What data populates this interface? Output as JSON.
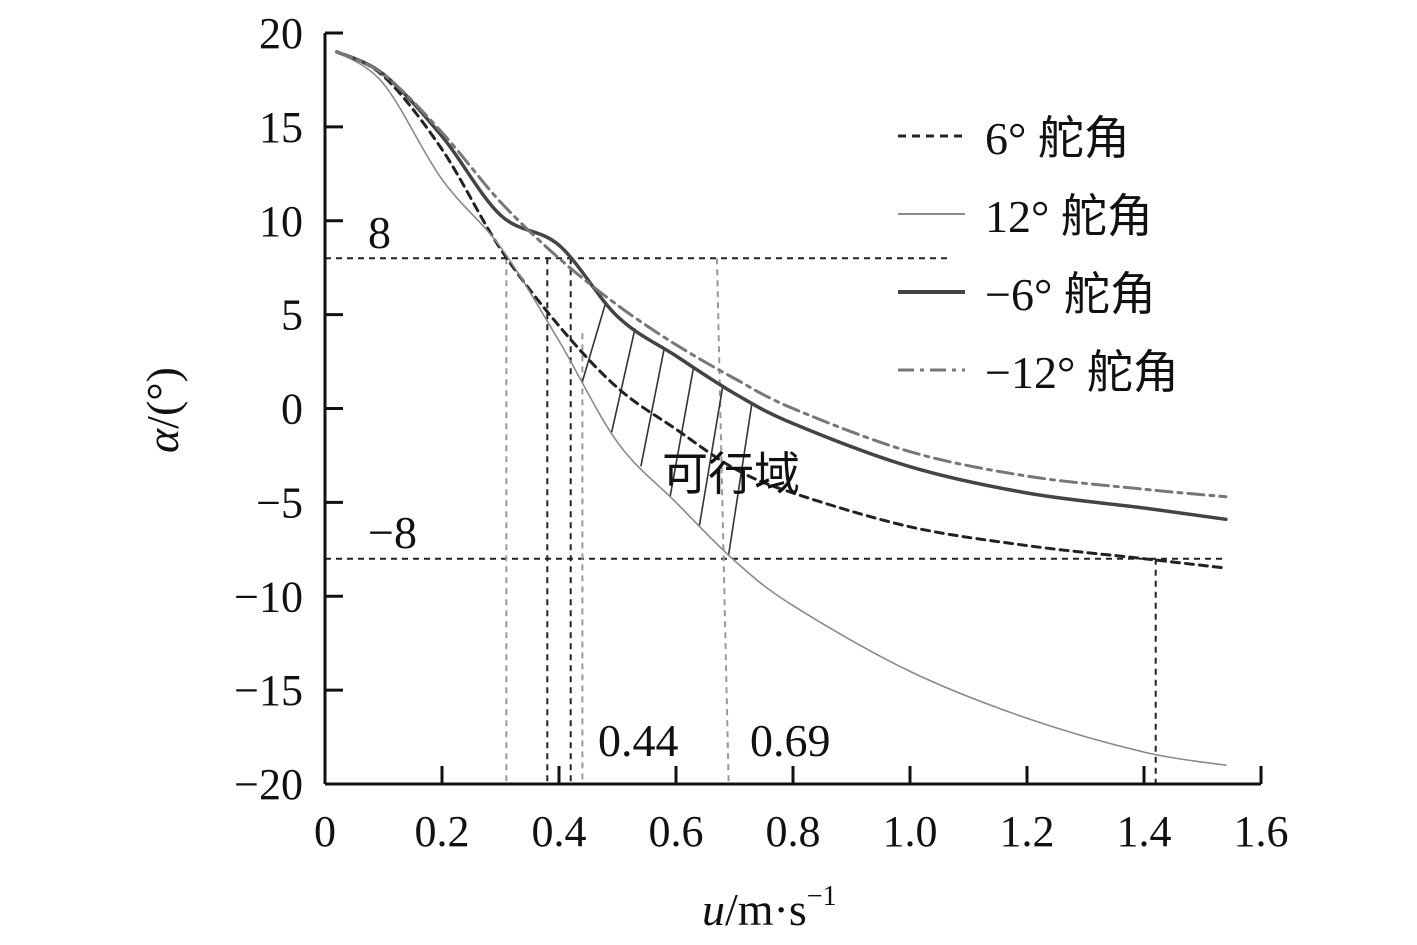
{
  "chart_data": {
    "type": "line",
    "title": "",
    "xlabel": "u/m·s⁻¹",
    "xlabel_parts": {
      "var": "u",
      "unit": "/m·s",
      "sup": "−1"
    },
    "ylabel": "α/(°)",
    "ylabel_parts": {
      "var": "α",
      "unit": "/(°)"
    },
    "xlim": [
      0,
      1.6
    ],
    "ylim": [
      -20,
      20
    ],
    "xticks": [
      0,
      0.2,
      0.4,
      0.6,
      0.8,
      1.0,
      1.2,
      1.4,
      1.6
    ],
    "xtick_labels": [
      "0",
      "0.2",
      "0.4",
      "0.6",
      "0.8",
      "1.0",
      "1.2",
      "1.4",
      "1.6"
    ],
    "yticks": [
      20,
      15,
      10,
      5,
      0,
      -5,
      -10,
      -15,
      -20
    ],
    "ytick_labels": [
      "20",
      "15",
      "10",
      "5",
      "0",
      "−5",
      "−10",
      "−15",
      "−20"
    ],
    "grid": false,
    "legend_position": "top-right",
    "series": [
      {
        "name": "6° 舵角",
        "style": "dashed",
        "color": "#222222",
        "x": [
          0.02,
          0.1,
          0.2,
          0.3,
          0.4,
          0.5,
          0.6,
          0.7,
          0.8,
          1.0,
          1.2,
          1.4,
          1.54
        ],
        "y": [
          19,
          17.7,
          13.8,
          8.5,
          4.4,
          1.1,
          -1.1,
          -3.2,
          -4.5,
          -6.3,
          -7.3,
          -8.0,
          -8.5
        ]
      },
      {
        "name": "12° 舵角",
        "style": "solid-thin",
        "color": "#8a8a8a",
        "x": [
          0.02,
          0.1,
          0.2,
          0.3,
          0.4,
          0.5,
          0.6,
          0.7,
          0.8,
          1.0,
          1.2,
          1.4,
          1.54
        ],
        "y": [
          19,
          17.3,
          12.2,
          8.6,
          3.6,
          -1.8,
          -5.0,
          -8.1,
          -10.5,
          -14.0,
          -16.5,
          -18.3,
          -19.0
        ]
      },
      {
        "name": "−6° 舵角",
        "style": "solid-thick",
        "color": "#444444",
        "x": [
          0.02,
          0.1,
          0.2,
          0.3,
          0.4,
          0.5,
          0.6,
          0.7,
          0.8,
          1.0,
          1.2,
          1.4,
          1.54
        ],
        "y": [
          19,
          17.8,
          14.5,
          10.3,
          8.7,
          4.9,
          2.8,
          0.8,
          -0.8,
          -3.1,
          -4.5,
          -5.3,
          -5.9
        ]
      },
      {
        "name": "−12° 舵角",
        "style": "dashdot",
        "color": "#777777",
        "x": [
          0.02,
          0.1,
          0.2,
          0.3,
          0.4,
          0.5,
          0.6,
          0.7,
          0.8,
          1.0,
          1.2,
          1.4,
          1.54
        ],
        "y": [
          19,
          17.8,
          14.7,
          11.0,
          8.0,
          5.5,
          3.4,
          1.6,
          0.0,
          -2.3,
          -3.6,
          -4.3,
          -4.7
        ]
      }
    ],
    "reference_lines": {
      "horizontal": [
        8,
        -8
      ],
      "horizontal_labels": [
        "8",
        "−8"
      ],
      "vertical": [
        0.31,
        0.38,
        0.42,
        0.44,
        0.69,
        1.42
      ]
    },
    "annotations": {
      "feasible_region": "可行域",
      "marks": [
        "0.44",
        "0.69"
      ]
    }
  }
}
